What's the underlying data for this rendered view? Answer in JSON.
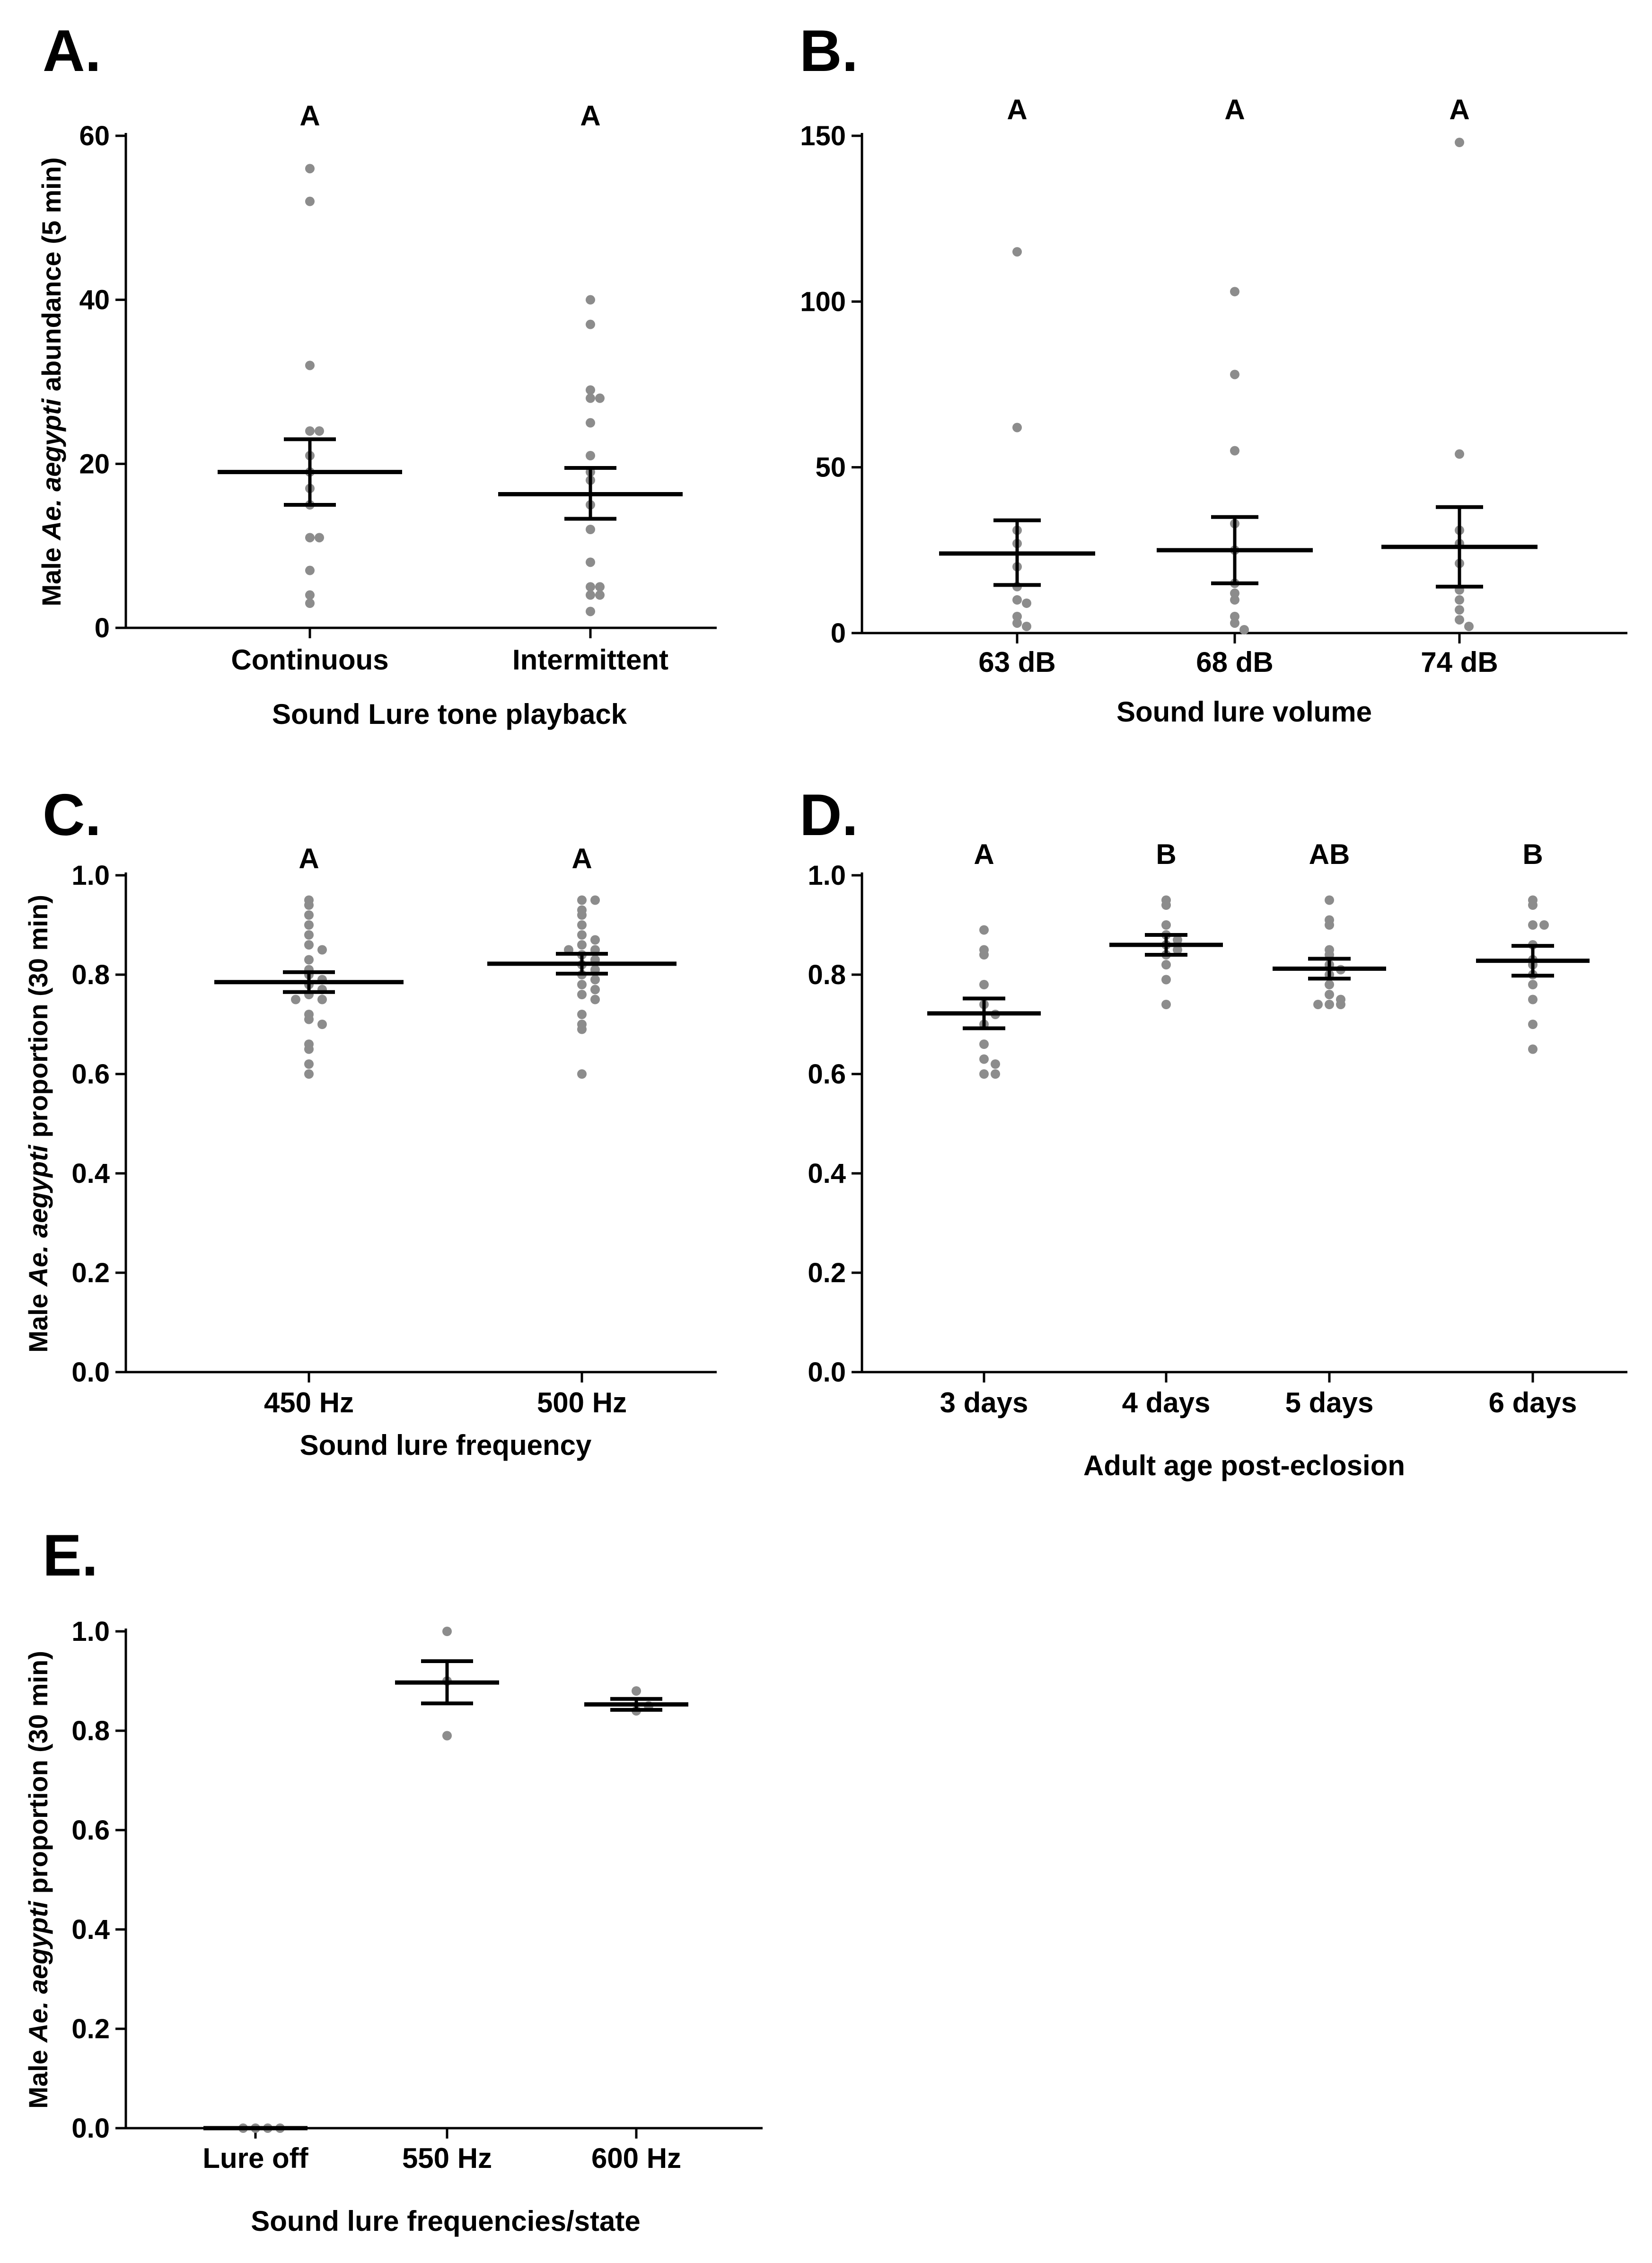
{
  "figure": {
    "colors": {
      "points": "#8c8c8c",
      "mean_sem": "#000000",
      "axes": "#000000"
    }
  },
  "chart_data": [
    {
      "id": "A",
      "type": "scatter",
      "panel_label": "A.",
      "ylabel": {
        "prefix": "Male ",
        "italic": "Ae. aegypti",
        "suffix": " abundance (5 min)"
      },
      "xlabel": "Sound Lure tone playback",
      "ylim": [
        0,
        60
      ],
      "yticks": [
        0,
        20,
        40,
        60
      ],
      "ytick_labels": [
        "0",
        "20",
        "40",
        "60"
      ],
      "categories": [
        "Continuous",
        "Intermittent"
      ],
      "significance": [
        "A",
        "A"
      ],
      "summary": "mean ± SEM",
      "groups": [
        {
          "name": "Continuous",
          "mean": 19,
          "sem_low": 15,
          "sem_high": 23,
          "points": [
            56,
            52,
            32,
            24,
            24,
            21,
            19,
            17,
            15,
            11,
            11,
            7,
            4,
            3
          ]
        },
        {
          "name": "Intermittent",
          "mean": 16.3,
          "sem_low": 13.3,
          "sem_high": 19.5,
          "points": [
            40,
            37,
            29,
            28,
            28,
            25,
            21,
            19,
            18,
            15,
            12,
            8,
            5,
            5,
            4,
            4,
            2
          ]
        }
      ]
    },
    {
      "id": "B",
      "type": "scatter",
      "panel_label": "B.",
      "ylabel": null,
      "xlabel": "Sound lure volume",
      "ylim": [
        0,
        150
      ],
      "yticks": [
        0,
        50,
        100,
        150
      ],
      "ytick_labels": [
        "0",
        "50",
        "100",
        "150"
      ],
      "categories": [
        "63 dB",
        "68 dB",
        "74 dB"
      ],
      "significance": [
        "A",
        "A",
        "A"
      ],
      "summary": "mean ± SEM",
      "groups": [
        {
          "name": "63 dB",
          "mean": 24,
          "sem_low": 14.5,
          "sem_high": 34,
          "points": [
            115,
            62,
            31,
            27,
            20,
            14,
            10,
            9,
            5,
            3,
            2
          ]
        },
        {
          "name": "68 dB",
          "mean": 25,
          "sem_low": 15,
          "sem_high": 35,
          "points": [
            103,
            78,
            55,
            33,
            25,
            15,
            12,
            10,
            5,
            3,
            1
          ]
        },
        {
          "name": "74 dB",
          "mean": 26,
          "sem_low": 14,
          "sem_high": 38,
          "points": [
            148,
            54,
            31,
            27,
            21,
            13,
            10,
            7,
            4,
            2
          ]
        }
      ]
    },
    {
      "id": "C",
      "type": "scatter",
      "panel_label": "C.",
      "ylabel": {
        "prefix": "Male ",
        "italic": "Ae. aegypti",
        "suffix": " proportion (30 min)"
      },
      "xlabel": "Sound lure frequency",
      "ylim": [
        0,
        1
      ],
      "yticks": [
        0,
        0.2,
        0.4,
        0.6,
        0.8,
        1.0
      ],
      "ytick_labels": [
        "0.0",
        "0.2",
        "0.4",
        "0.6",
        "0.8",
        "1.0"
      ],
      "categories": [
        "450 Hz",
        "500 Hz"
      ],
      "significance": [
        "A",
        "A"
      ],
      "summary": "mean ± SEM",
      "groups": [
        {
          "name": "450 Hz",
          "mean": 0.785,
          "sem_low": 0.765,
          "sem_high": 0.805,
          "points": [
            0.95,
            0.94,
            0.92,
            0.9,
            0.88,
            0.86,
            0.85,
            0.83,
            0.81,
            0.8,
            0.79,
            0.78,
            0.77,
            0.76,
            0.75,
            0.75,
            0.72,
            0.71,
            0.7,
            0.66,
            0.65,
            0.62,
            0.6
          ]
        },
        {
          "name": "500 Hz",
          "mean": 0.822,
          "sem_low": 0.802,
          "sem_high": 0.842,
          "points": [
            0.95,
            0.95,
            0.93,
            0.92,
            0.9,
            0.88,
            0.87,
            0.86,
            0.85,
            0.85,
            0.84,
            0.83,
            0.82,
            0.81,
            0.8,
            0.79,
            0.78,
            0.77,
            0.76,
            0.75,
            0.72,
            0.7,
            0.69,
            0.6
          ]
        }
      ]
    },
    {
      "id": "D",
      "type": "scatter",
      "panel_label": "D.",
      "ylabel": null,
      "xlabel": "Adult age post-eclosion",
      "ylim": [
        0,
        1
      ],
      "yticks": [
        0,
        0.2,
        0.4,
        0.6,
        0.8,
        1.0
      ],
      "ytick_labels": [
        "0.0",
        "0.2",
        "0.4",
        "0.6",
        "0.8",
        "1.0"
      ],
      "categories": [
        "3 days",
        "4 days",
        "5 days",
        "6 days"
      ],
      "significance": [
        "A",
        "B",
        "AB",
        "B"
      ],
      "summary": "mean ± SEM",
      "groups": [
        {
          "name": "3 days",
          "mean": 0.722,
          "sem_low": 0.692,
          "sem_high": 0.752,
          "points": [
            0.89,
            0.85,
            0.84,
            0.78,
            0.74,
            0.72,
            0.7,
            0.66,
            0.63,
            0.62,
            0.6,
            0.6
          ]
        },
        {
          "name": "4 days",
          "mean": 0.86,
          "sem_low": 0.84,
          "sem_high": 0.88,
          "points": [
            0.95,
            0.94,
            0.9,
            0.88,
            0.87,
            0.86,
            0.85,
            0.84,
            0.82,
            0.79,
            0.74
          ]
        },
        {
          "name": "5 days",
          "mean": 0.812,
          "sem_low": 0.792,
          "sem_high": 0.832,
          "points": [
            0.95,
            0.91,
            0.9,
            0.85,
            0.84,
            0.82,
            0.81,
            0.8,
            0.78,
            0.76,
            0.75,
            0.74,
            0.74,
            0.74
          ]
        },
        {
          "name": "6 days",
          "mean": 0.828,
          "sem_low": 0.798,
          "sem_high": 0.858,
          "points": [
            0.95,
            0.94,
            0.9,
            0.9,
            0.86,
            0.83,
            0.82,
            0.8,
            0.78,
            0.75,
            0.7,
            0.65
          ]
        }
      ]
    },
    {
      "id": "E",
      "type": "scatter",
      "panel_label": "E.",
      "ylabel": {
        "prefix": "Male ",
        "italic": "Ae. aegypti",
        "suffix": " proportion (30 min)"
      },
      "xlabel": "Sound lure frequencies/state",
      "ylim": [
        0,
        1
      ],
      "yticks": [
        0,
        0.2,
        0.4,
        0.6,
        0.8,
        1.0
      ],
      "ytick_labels": [
        "0.0",
        "0.2",
        "0.4",
        "0.6",
        "0.8",
        "1.0"
      ],
      "categories": [
        "Lure off",
        "550 Hz",
        "600 Hz"
      ],
      "significance": null,
      "summary": "mean ± SEM",
      "groups": [
        {
          "name": "Lure off",
          "mean": 0.0,
          "sem_low": 0.0,
          "sem_high": 0.0,
          "points": [
            0,
            0,
            0,
            0
          ]
        },
        {
          "name": "550 Hz",
          "mean": 0.897,
          "sem_low": 0.855,
          "sem_high": 0.94,
          "points": [
            1.0,
            0.9,
            0.79
          ]
        },
        {
          "name": "600 Hz",
          "mean": 0.853,
          "sem_low": 0.842,
          "sem_high": 0.864,
          "points": [
            0.88,
            0.84,
            0.85
          ]
        }
      ]
    }
  ]
}
